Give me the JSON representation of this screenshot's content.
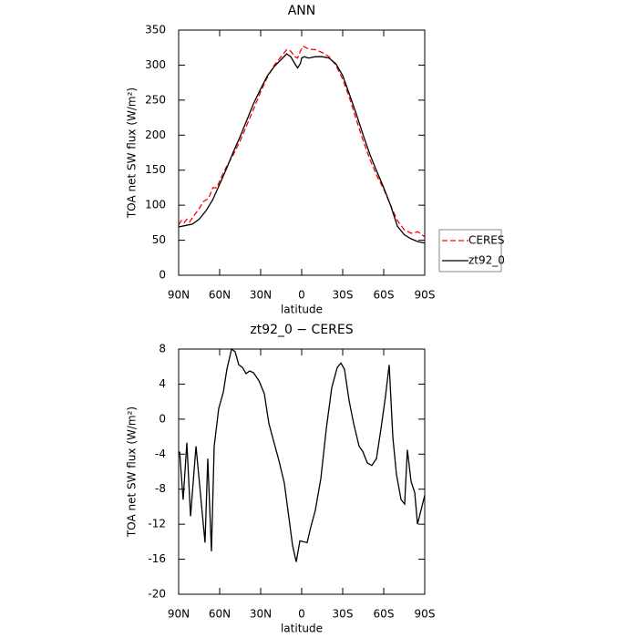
{
  "chart_data": [
    {
      "type": "line",
      "title": "ANN",
      "xlabel": "latitude",
      "ylabel": "TOA net SW flux (W/m²)",
      "xlim": [
        90,
        -90
      ],
      "xticks": [
        {
          "value": 90,
          "label": "90N"
        },
        {
          "value": 60,
          "label": "60N"
        },
        {
          "value": 30,
          "label": "30N"
        },
        0,
        {
          "value": -30,
          "label": "30S"
        },
        {
          "value": -60,
          "label": "60S"
        },
        {
          "value": -90,
          "label": "90S"
        }
      ],
      "ylim": [
        0,
        350
      ],
      "yticks": [
        0,
        50,
        100,
        150,
        200,
        250,
        300,
        350
      ],
      "legend": "right",
      "series": [
        {
          "name": "CERES",
          "color": "#ff0000",
          "linestyle": "dashed",
          "x": [
            90,
            88,
            86,
            84,
            82,
            80,
            75,
            72,
            68,
            65,
            62,
            60,
            55,
            50,
            45,
            40,
            35,
            30,
            25,
            20,
            15,
            11,
            8,
            5,
            3,
            1,
            -1,
            -3,
            -5,
            -10,
            -15,
            -20,
            -25,
            -30,
            -35,
            -40,
            -45,
            -50,
            -55,
            -60,
            -65,
            -70,
            -75,
            -80,
            -85,
            -88,
            -90
          ],
          "values": [
            72,
            78,
            75,
            80,
            76,
            82,
            95,
            105,
            110,
            125,
            125,
            135,
            155,
            172,
            192,
            215,
            238,
            262,
            283,
            300,
            312,
            322,
            320,
            312,
            310,
            320,
            327,
            325,
            323,
            322,
            318,
            312,
            300,
            280,
            253,
            222,
            192,
            165,
            142,
            123,
            100,
            78,
            65,
            60,
            62,
            58,
            55
          ]
        },
        {
          "name": "zt92_0",
          "color": "#000000",
          "linestyle": "solid",
          "x": [
            90,
            85,
            80,
            75,
            70,
            65,
            60,
            55,
            50,
            45,
            40,
            35,
            30,
            25,
            20,
            15,
            11,
            8,
            5,
            3,
            1,
            0,
            -2,
            -5,
            -10,
            -15,
            -20,
            -25,
            -30,
            -35,
            -40,
            -45,
            -50,
            -55,
            -60,
            -65,
            -70,
            -75,
            -80,
            -85,
            -90
          ],
          "values": [
            69,
            71,
            73,
            80,
            92,
            108,
            130,
            152,
            176,
            198,
            222,
            246,
            266,
            285,
            298,
            308,
            316,
            312,
            302,
            296,
            302,
            310,
            312,
            310,
            312,
            312,
            310,
            302,
            285,
            258,
            230,
            200,
            172,
            148,
            125,
            100,
            70,
            58,
            52,
            48,
            46
          ]
        }
      ]
    },
    {
      "type": "line",
      "title": "zt92_0 − CERES",
      "xlabel": "latitude",
      "ylabel": "TOA net SW flux (W/m²)",
      "xlim": [
        90,
        -90
      ],
      "xticks": [
        {
          "value": 90,
          "label": "90N"
        },
        {
          "value": 60,
          "label": "60N"
        },
        {
          "value": 30,
          "label": "30N"
        },
        0,
        {
          "value": -30,
          "label": "30S"
        },
        {
          "value": -60,
          "label": "60S"
        },
        {
          "value": -90,
          "label": "90S"
        }
      ],
      "ylim": [
        -20,
        8
      ],
      "yticks": [
        -20,
        -16,
        -12,
        -8,
        -4,
        0,
        4,
        8
      ],
      "color": "#000000",
      "x": [
        89.3,
        86.7,
        84,
        81.3,
        77.3,
        70.7,
        68.7,
        66,
        64,
        60.7,
        57.3,
        54.7,
        51.3,
        48.7,
        46,
        43.3,
        40.7,
        38,
        35.3,
        31.3,
        27.3,
        24,
        20.7,
        16.7,
        12.7,
        9.3,
        6.7,
        4,
        1.3,
        -1.3,
        -4,
        -6.7,
        -10,
        -14,
        -18,
        -22,
        -26,
        -28.7,
        -31.3,
        -34.7,
        -38,
        -42,
        -44.7,
        -48,
        -51.3,
        -54.7,
        -58,
        -61.3,
        -64,
        -66.7,
        -69.3,
        -72.7,
        -75.3,
        -77.3,
        -80,
        -82.7,
        -84.7,
        -87.3,
        -90
      ],
      "values": [
        -3.7,
        -9.2,
        -2.7,
        -11.1,
        -3.1,
        -14.1,
        -4.5,
        -15.1,
        -3.1,
        1.2,
        3.1,
        5.7,
        8,
        7.7,
        6.2,
        5.9,
        5.2,
        5.5,
        5.3,
        4.4,
        2.9,
        -0.5,
        -2.4,
        -4.7,
        -7.3,
        -11.3,
        -14.4,
        -16.3,
        -13.9,
        -14,
        -14.1,
        -12.3,
        -10.4,
        -6.8,
        -1.1,
        3.6,
        5.9,
        6.4,
        5.7,
        2.1,
        -0.5,
        -3.1,
        -3.7,
        -5,
        -5.3,
        -4.5,
        -1.1,
        2.6,
        6.2,
        -2.1,
        -6.3,
        -9.2,
        -9.7,
        -3.5,
        -7.1,
        -8.4,
        -12,
        -10.4,
        -8.7
      ]
    }
  ]
}
